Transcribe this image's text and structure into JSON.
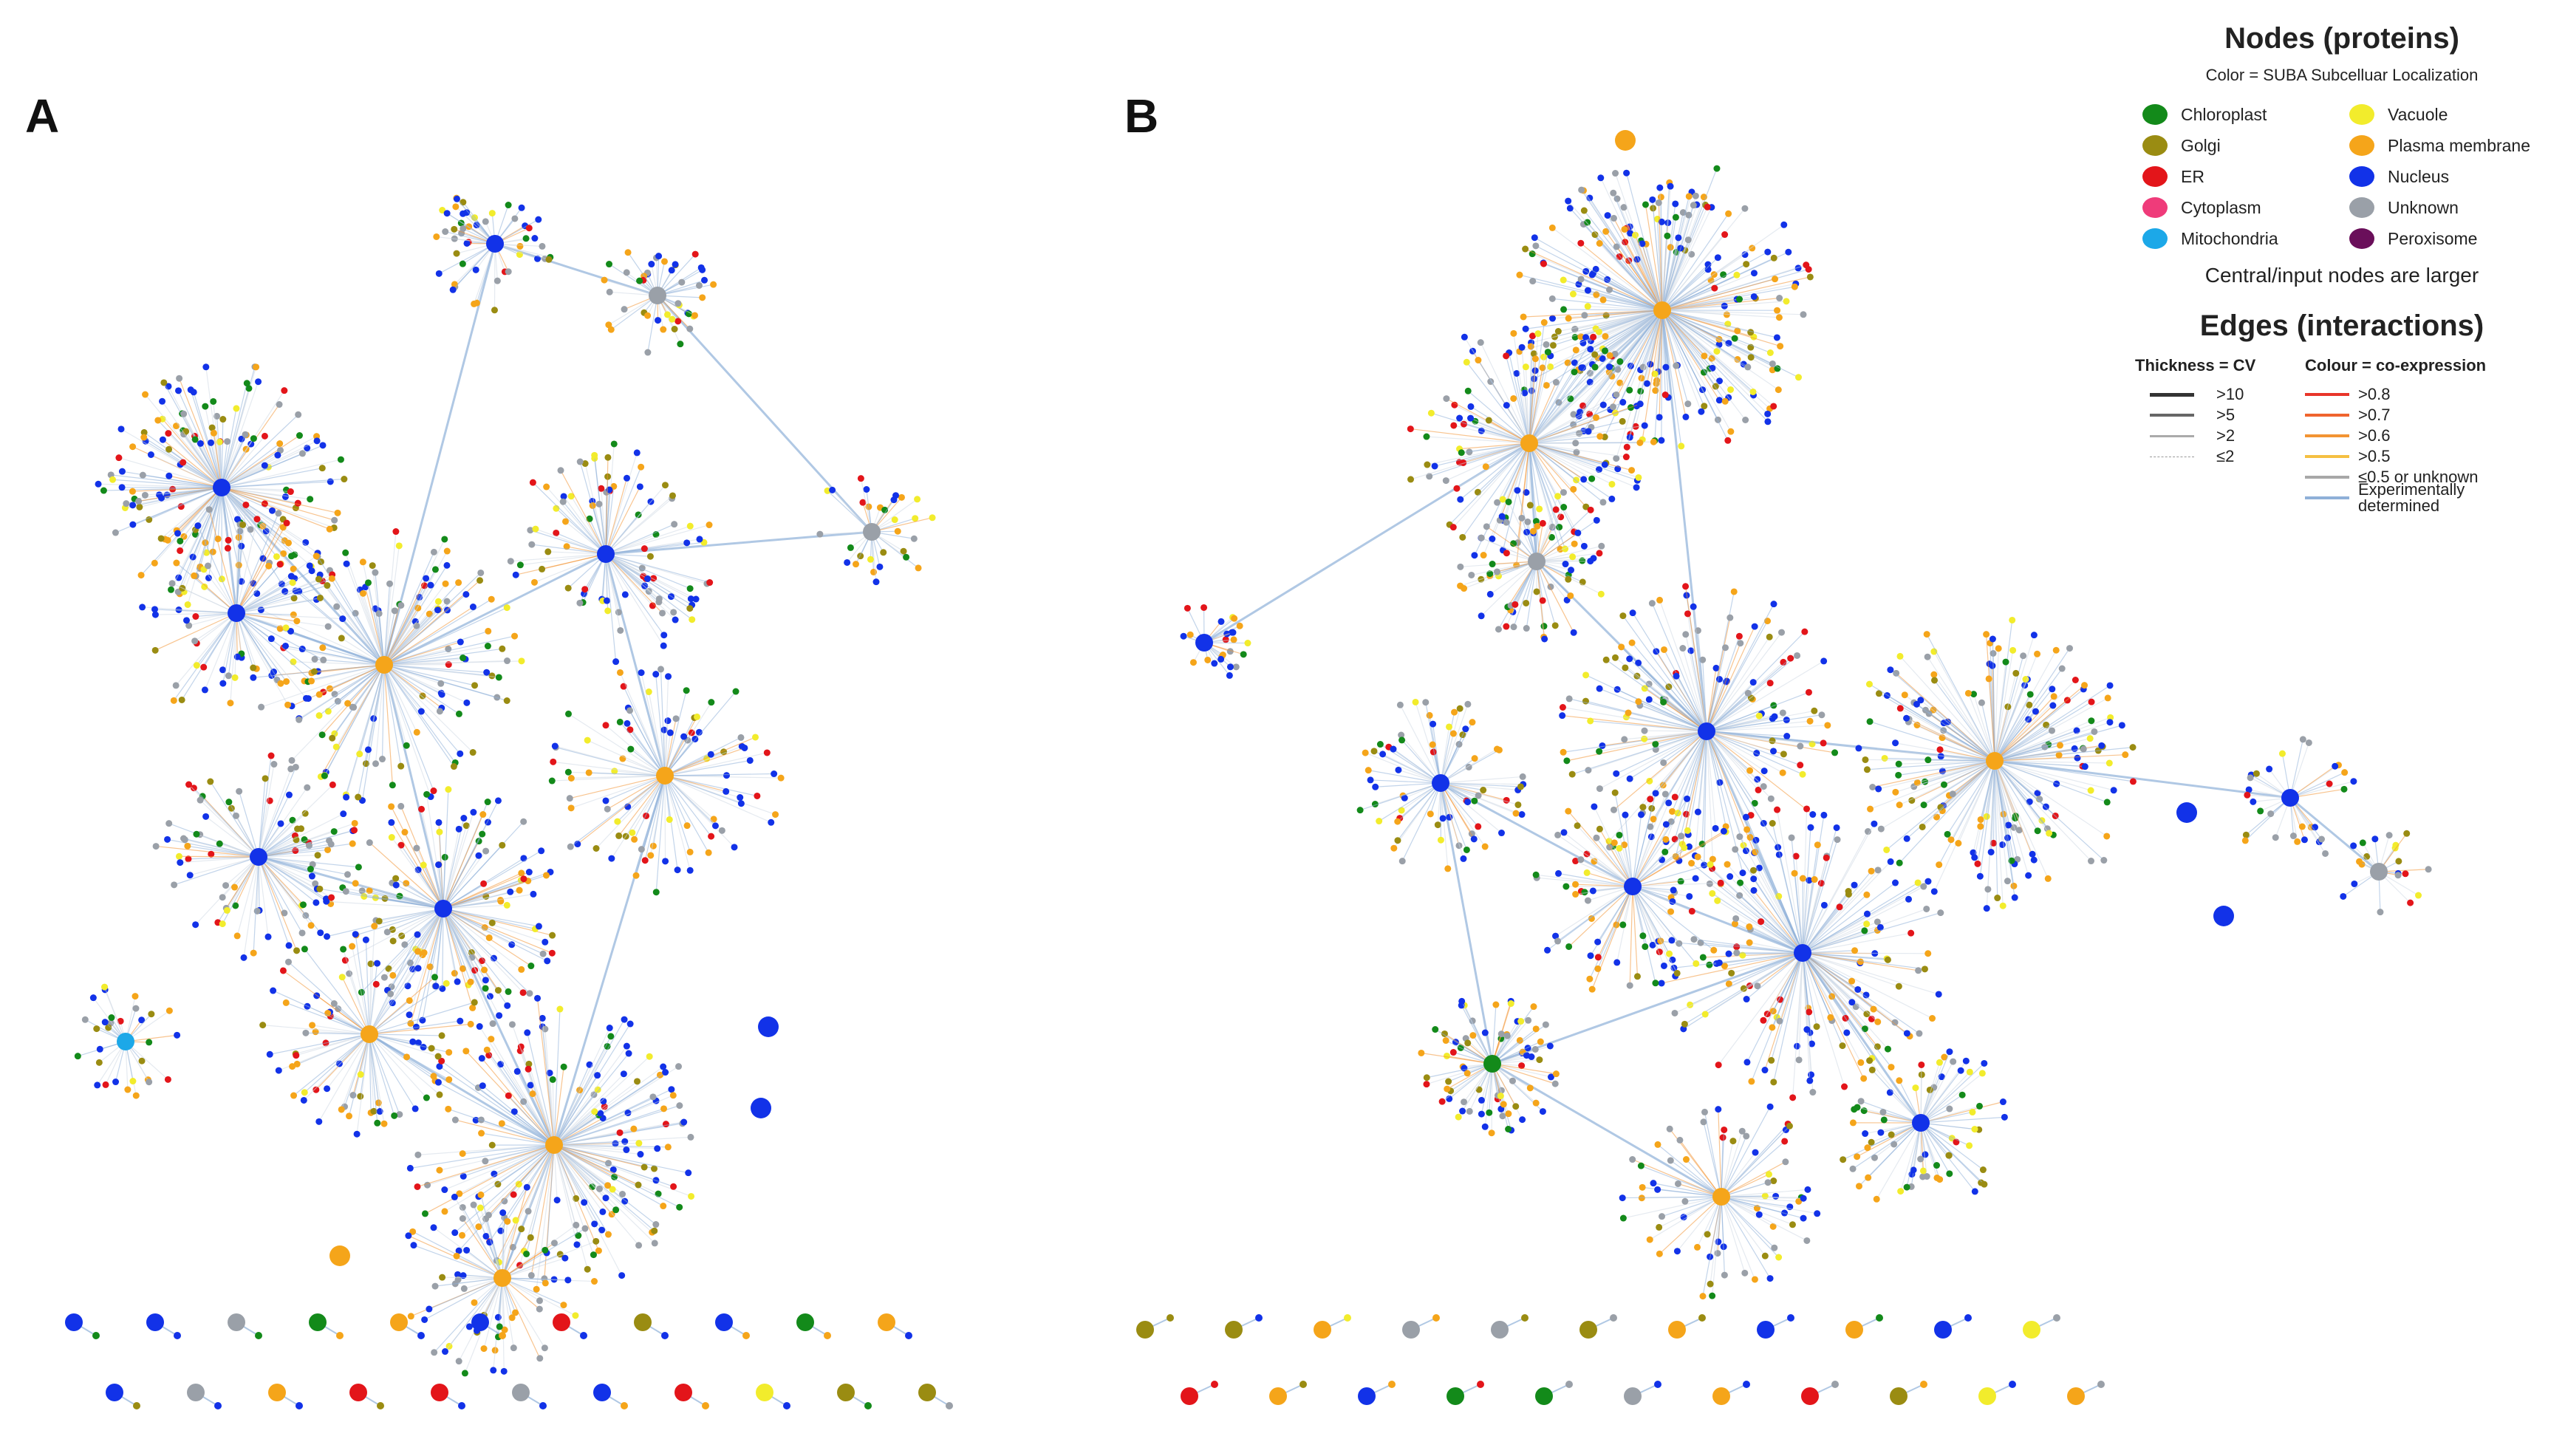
{
  "panels": {
    "a": "A",
    "b": "B"
  },
  "legend": {
    "nodes_title": "Nodes (proteins)",
    "nodes_subtitle": "Color = SUBA Subcelluar Localization",
    "localizations": [
      {
        "name": "Chloroplast",
        "color": "#138a1a"
      },
      {
        "name": "Vacuole",
        "color": "#f2ec2c"
      },
      {
        "name": "Golgi",
        "color": "#9a8c12"
      },
      {
        "name": "Plasma membrane",
        "color": "#f5a51a"
      },
      {
        "name": "ER",
        "color": "#e3151a"
      },
      {
        "name": "Nucleus",
        "color": "#1232e8"
      },
      {
        "name": "Cytoplasm",
        "color": "#ef3b7a"
      },
      {
        "name": "Unknown",
        "color": "#9aa0a8"
      },
      {
        "name": "Mitochondria",
        "color": "#1ca8e8"
      },
      {
        "name": "Peroxisome",
        "color": "#6a0f5a"
      }
    ],
    "size_note": "Central/input nodes are larger",
    "edges_title": "Edges (interactions)",
    "thickness_header": "Thickness = CV",
    "colour_header": "Colour = co-expression",
    "thickness": [
      ">10",
      ">5",
      ">2",
      "≤2"
    ],
    "coexpression": [
      {
        "label": ">0.8",
        "color": "#e8352a"
      },
      {
        "label": ">0.7",
        "color": "#f0642e"
      },
      {
        "label": ">0.6",
        "color": "#f39433"
      },
      {
        "label": ">0.5",
        "color": "#f5c042"
      },
      {
        "label": "≤0.5 or unknown",
        "color": "#a8a8a8"
      },
      {
        "label": "Experimentally determined",
        "color": "#8fb0d8"
      }
    ]
  }
}
